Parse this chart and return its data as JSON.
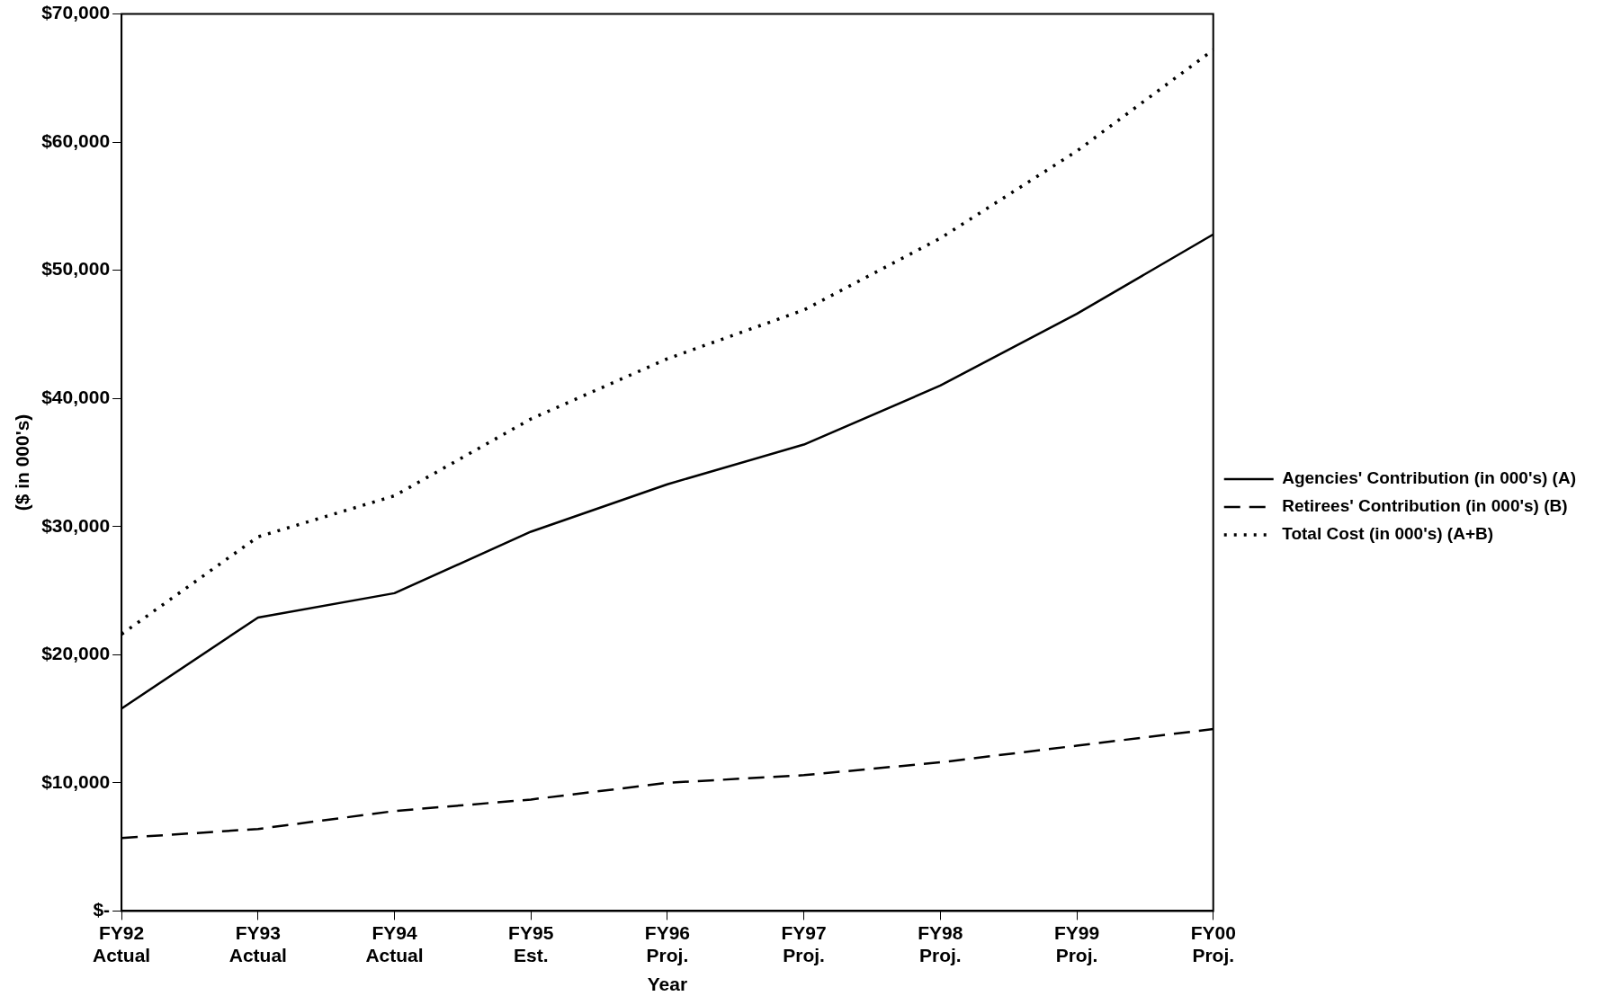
{
  "chart_data": {
    "type": "line",
    "xlabel": "Year",
    "ylabel": "($ in 000's)",
    "categories": [
      "FY92\nActual",
      "FY93\nActual",
      "FY94\nActual",
      "FY95\nEst.",
      "FY96\nProj.",
      "FY97\nProj.",
      "FY98\nProj.",
      "FY99\nProj.",
      "FY00\nProj."
    ],
    "series": [
      {
        "name": "Agencies' Contribution (in 000's) (A)",
        "color": "#000000",
        "line_style": "solid",
        "values": [
          15800,
          22900,
          24800,
          29600,
          33300,
          36400,
          41000,
          46600,
          52800
        ]
      },
      {
        "name": "Retirees' Contribution (in 000's) (B)",
        "color": "#000000",
        "line_style": "dashed",
        "values": [
          5700,
          6400,
          7800,
          8700,
          10000,
          10600,
          11600,
          12900,
          14200
        ]
      },
      {
        "name": "Total Cost (in 000's) (A+B)",
        "color": "#000000",
        "line_style": "dotted",
        "values": [
          21600,
          29200,
          32400,
          38400,
          43100,
          46900,
          52500,
          59300,
          67200
        ]
      }
    ],
    "ylim": [
      0,
      70000
    ],
    "yticks": [
      {
        "value": 0,
        "label": "$-"
      },
      {
        "value": 10000,
        "label": "$10,000"
      },
      {
        "value": 20000,
        "label": "$20,000"
      },
      {
        "value": 30000,
        "label": "$30,000"
      },
      {
        "value": 40000,
        "label": "$40,000"
      },
      {
        "value": 50000,
        "label": "$50,000"
      },
      {
        "value": 60000,
        "label": "$60,000"
      },
      {
        "value": 70000,
        "label": "$70,000"
      }
    ],
    "grid": false,
    "legend": "right",
    "marker": "none"
  }
}
